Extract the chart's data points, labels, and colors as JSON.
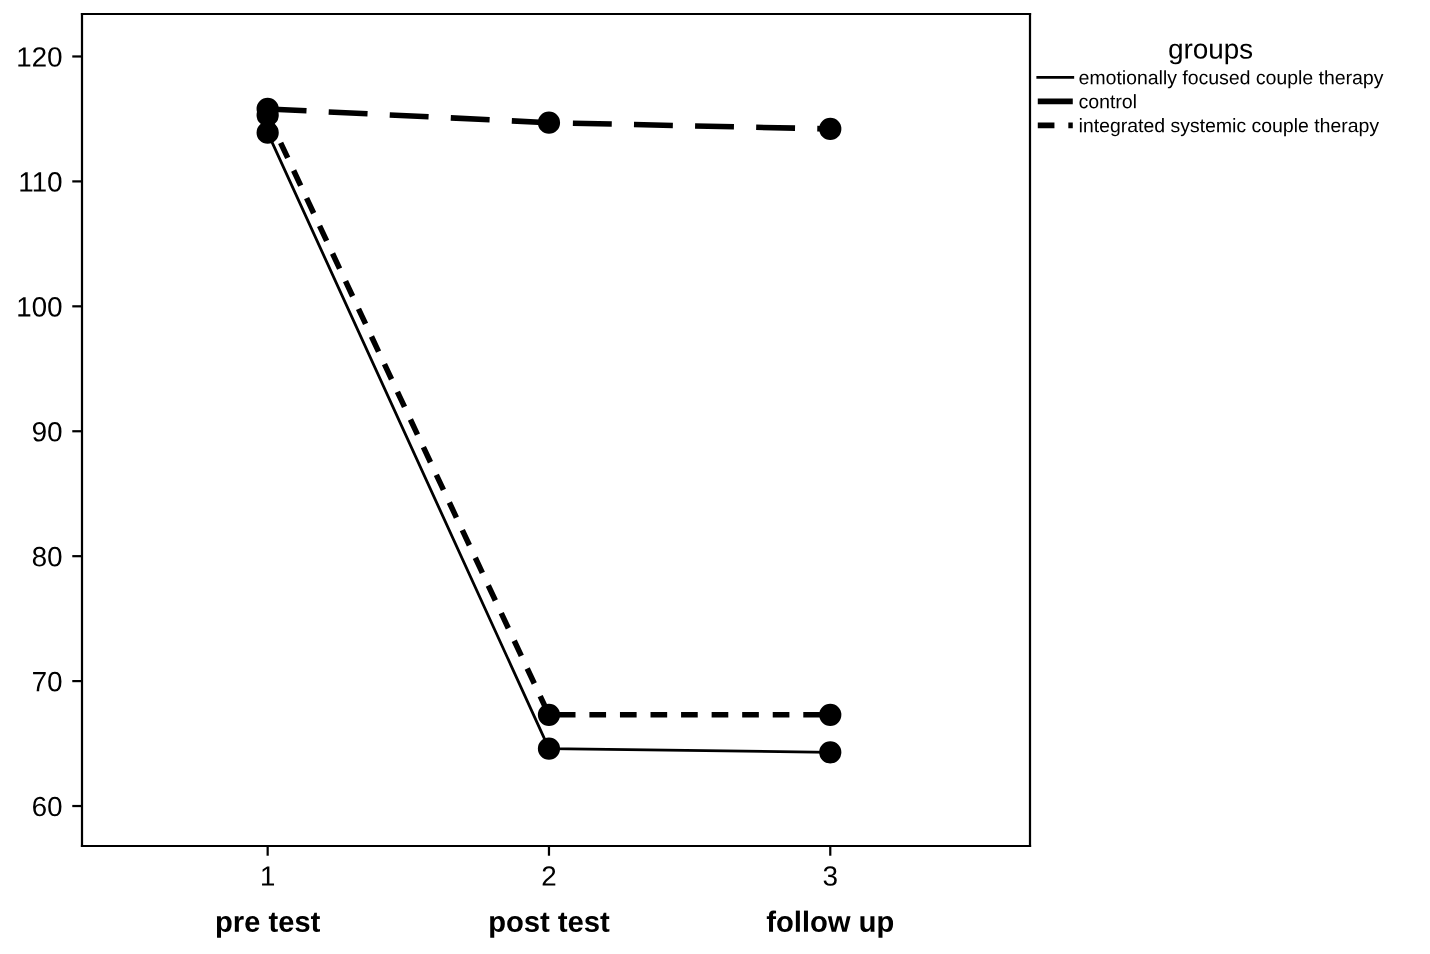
{
  "chart_data": {
    "type": "line",
    "x": [
      1,
      2,
      3
    ],
    "series": [
      {
        "name": "emotionally focused couple therapy",
        "color": "#000000",
        "line_style": "solid",
        "values": [
          113.9,
          64.6,
          64.3
        ]
      },
      {
        "name": "control",
        "color": "#000000",
        "line_style": "dashed",
        "values": [
          115.8,
          114.7,
          114.2
        ]
      },
      {
        "name": "integrated systemic couple therapy",
        "color": "#000000",
        "line_style": "dotted",
        "values": [
          115.3,
          67.3,
          67.3
        ]
      }
    ],
    "xlim": [
      0.34,
      3.71
    ],
    "xticks": [
      1,
      2,
      3
    ],
    "ylim": [
      56.8,
      123.4
    ],
    "yticks": [
      60,
      70,
      80,
      90,
      100,
      110,
      120
    ],
    "annotations": [
      "pre test",
      "post test",
      "follow up"
    ],
    "legend": "right",
    "legend_title": "groups",
    "marker": "circle",
    "grid": false
  }
}
